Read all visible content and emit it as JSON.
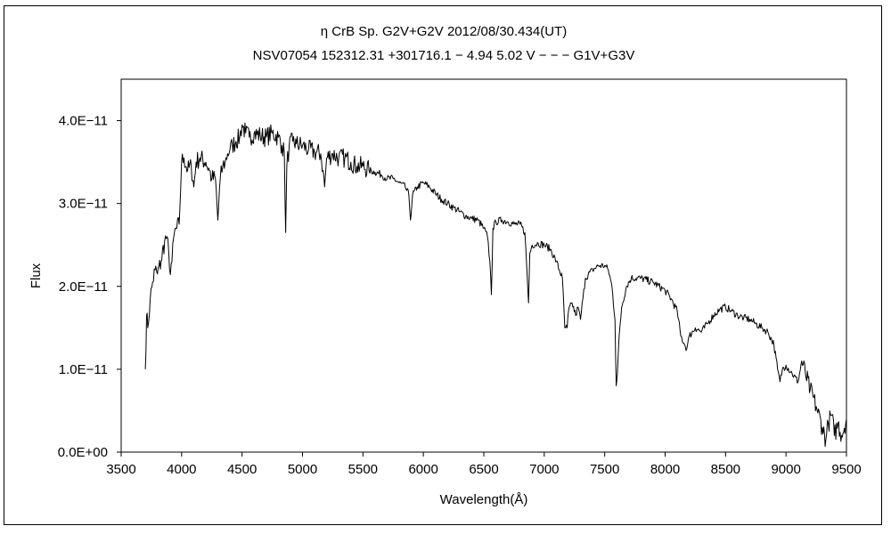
{
  "chart_data": {
    "type": "line",
    "title": "η  CrB    Sp. G2V+G2V    2012/08/30.434(UT)",
    "subtitle": "NSV07054 152312.31 +301716.1 − 4.94 5.02  V − − −  G1V+G3V",
    "xlabel": "Wavelength(Å)",
    "ylabel": "Flux",
    "xlim": [
      3500,
      9500
    ],
    "ylim": [
      0,
      4.5e-11
    ],
    "grid": false,
    "x_ticks": [
      3500,
      4000,
      4500,
      5000,
      5500,
      6000,
      6500,
      7000,
      7500,
      8000,
      8500,
      9000,
      9500
    ],
    "x_tick_labels": [
      "3500",
      "4000",
      "4500",
      "5000",
      "5500",
      "6000",
      "6500",
      "7000",
      "7500",
      "8000",
      "8500",
      "9000",
      "9500"
    ],
    "y_ticks": [
      0,
      1e-11,
      2e-11,
      3e-11,
      4e-11
    ],
    "y_tick_labels": [
      "0.0E+00",
      "1.0E−11",
      "2.0E−11",
      "3.0E−11",
      "4.0E−11"
    ],
    "series": [
      {
        "color": "#000000",
        "x": [
          3700,
          3710,
          3720,
          3740,
          3760,
          3780,
          3800,
          3830,
          3860,
          3880,
          3900,
          3920,
          3940,
          3960,
          3980,
          4000,
          4020,
          4050,
          4080,
          4101,
          4120,
          4150,
          4200,
          4230,
          4250,
          4280,
          4300,
          4320,
          4340,
          4360,
          4380,
          4400,
          4420,
          4450,
          4480,
          4500,
          4530,
          4560,
          4600,
          4650,
          4700,
          4750,
          4800,
          4830,
          4850,
          4861,
          4870,
          4890,
          4920,
          4950,
          5000,
          5050,
          5100,
          5150,
          5170,
          5183,
          5200,
          5250,
          5300,
          5350,
          5400,
          5450,
          5500,
          5550,
          5600,
          5650,
          5700,
          5750,
          5800,
          5850,
          5880,
          5893,
          5910,
          5950,
          6000,
          6050,
          6100,
          6150,
          6200,
          6250,
          6300,
          6350,
          6400,
          6450,
          6500,
          6530,
          6550,
          6563,
          6575,
          6600,
          6650,
          6700,
          6750,
          6800,
          6840,
          6860,
          6870,
          6880,
          6900,
          6950,
          7000,
          7050,
          7100,
          7150,
          7170,
          7190,
          7200,
          7230,
          7260,
          7280,
          7300,
          7320,
          7340,
          7400,
          7450,
          7500,
          7530,
          7560,
          7585,
          7595,
          7605,
          7620,
          7640,
          7680,
          7720,
          7800,
          7900,
          8000,
          8050,
          8100,
          8130,
          8160,
          8180,
          8200,
          8250,
          8300,
          8350,
          8400,
          8450,
          8500,
          8550,
          8600,
          8650,
          8700,
          8750,
          8800,
          8850,
          8900,
          8930,
          8950,
          8970,
          9000,
          9050,
          9100,
          9130,
          9160,
          9200,
          9250,
          9300,
          9330,
          9350,
          9380,
          9400,
          9430,
          9460,
          9500
        ],
        "values": [
          1e-11,
          1.65e-11,
          1.5e-11,
          1.85e-11,
          2.05e-11,
          2.2e-11,
          2.15e-11,
          2.3e-11,
          2.55e-11,
          2.6e-11,
          2.2e-11,
          2.3e-11,
          2.65e-11,
          2.7e-11,
          2.75e-11,
          3.5e-11,
          3.55e-11,
          3.4e-11,
          3.45e-11,
          3.2e-11,
          3.5e-11,
          3.55e-11,
          3.5e-11,
          3.4e-11,
          3.3e-11,
          3.3e-11,
          2.8e-11,
          3.3e-11,
          3.45e-11,
          3.5e-11,
          3.6e-11,
          3.65e-11,
          3.7e-11,
          3.75e-11,
          3.8e-11,
          3.95e-11,
          3.85e-11,
          3.8e-11,
          3.85e-11,
          3.82e-11,
          3.8e-11,
          3.85e-11,
          3.8e-11,
          3.7e-11,
          3.6e-11,
          2.65e-11,
          3.45e-11,
          3.7e-11,
          3.75e-11,
          3.72e-11,
          3.7e-11,
          3.65e-11,
          3.62e-11,
          3.6e-11,
          3.4e-11,
          3.2e-11,
          3.55e-11,
          3.6e-11,
          3.55e-11,
          3.55e-11,
          3.5e-11,
          3.45e-11,
          3.45e-11,
          3.4e-11,
          3.38e-11,
          3.35e-11,
          3.3e-11,
          3.3e-11,
          3.25e-11,
          3.2e-11,
          3.1e-11,
          2.8e-11,
          3.1e-11,
          3.2e-11,
          3.25e-11,
          3.2e-11,
          3.12e-11,
          3.05e-11,
          3e-11,
          2.95e-11,
          2.9e-11,
          2.85e-11,
          2.82e-11,
          2.8e-11,
          2.7e-11,
          2.6e-11,
          2.3e-11,
          1.9e-11,
          2.7e-11,
          2.78e-11,
          2.8e-11,
          2.78e-11,
          2.75e-11,
          2.75e-11,
          2.65e-11,
          2.1e-11,
          1.8e-11,
          2.4e-11,
          2.5e-11,
          2.52e-11,
          2.5e-11,
          2.45e-11,
          2.3e-11,
          2.1e-11,
          1.5e-11,
          1.5e-11,
          1.7e-11,
          1.8e-11,
          1.65e-11,
          1.75e-11,
          1.6e-11,
          1.85e-11,
          2.1e-11,
          2.2e-11,
          2.25e-11,
          2.25e-11,
          2.2e-11,
          2e-11,
          1.6e-11,
          8e-12,
          9.5e-12,
          1.4e-11,
          1.75e-11,
          2e-11,
          2.1e-11,
          2.1e-11,
          2.05e-11,
          1.95e-11,
          1.85e-11,
          1.7e-11,
          1.4e-11,
          1.3e-11,
          1.25e-11,
          1.4e-11,
          1.5e-11,
          1.45e-11,
          1.55e-11,
          1.65e-11,
          1.72e-11,
          1.75e-11,
          1.7e-11,
          1.65e-11,
          1.62e-11,
          1.6e-11,
          1.55e-11,
          1.5e-11,
          1.45e-11,
          1.3e-11,
          1e-11,
          8.5e-12,
          1e-11,
          1.05e-11,
          9.5e-12,
          8.5e-12,
          1.1e-11,
          9.5e-12,
          7.5e-12,
          5.5e-12,
          3e-12,
          1.5e-12,
          3.5e-12,
          4.5e-12,
          2e-12,
          3.5e-12,
          2e-12,
          4e-12
        ]
      }
    ]
  }
}
